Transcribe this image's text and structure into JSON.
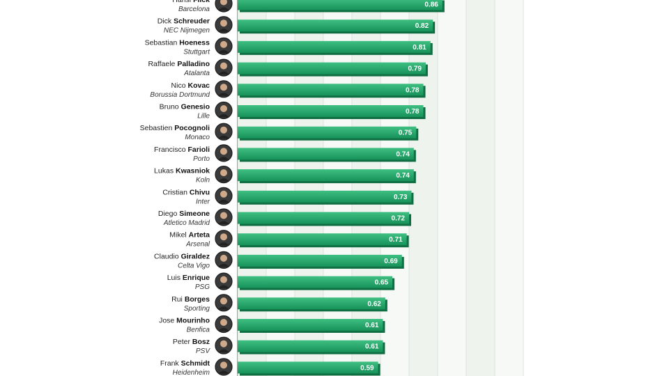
{
  "colors": {
    "bar_top": "#3fbf82",
    "bar_bottom": "#17925a",
    "bar_edge": "#0f6e42",
    "band_a": "#eef3ee",
    "band_b": "#f7f9f7",
    "grid": "#d6ddd6",
    "avatar_bg": "#3a3a3a",
    "avatar_ring": "#1b1b1b"
  },
  "chart_data": {
    "type": "bar",
    "orientation": "horizontal",
    "xlim": [
      0,
      1.2
    ],
    "grid": true,
    "legend": "none",
    "rows": [
      {
        "first": "Hansi",
        "last": "Flick",
        "club": "Barcelona",
        "value": 0.86,
        "label": "0.86"
      },
      {
        "first": "Dick",
        "last": "Schreuder",
        "club": "NEC Nijmegen",
        "value": 0.82,
        "label": "0.82"
      },
      {
        "first": "Sebastian",
        "last": "Hoeness",
        "club": "Stuttgart",
        "value": 0.81,
        "label": "0.81"
      },
      {
        "first": "Raffaele",
        "last": "Palladino",
        "club": "Atalanta",
        "value": 0.79,
        "label": "0.79"
      },
      {
        "first": "Nico",
        "last": "Kovac",
        "club": "Borussia Dortmund",
        "value": 0.78,
        "label": "0.78"
      },
      {
        "first": "Bruno",
        "last": "Genesio",
        "club": "Lille",
        "value": 0.78,
        "label": "0.78"
      },
      {
        "first": "Sebastien",
        "last": "Pocognoli",
        "club": "Monaco",
        "value": 0.75,
        "label": "0.75"
      },
      {
        "first": "Francisco",
        "last": "Farioli",
        "club": "Porto",
        "value": 0.74,
        "label": "0.74"
      },
      {
        "first": "Lukas",
        "last": "Kwasniok",
        "club": "Koln",
        "value": 0.74,
        "label": "0.74"
      },
      {
        "first": "Cristian",
        "last": "Chivu",
        "club": "Inter",
        "value": 0.73,
        "label": "0.73"
      },
      {
        "first": "Diego",
        "last": "Simeone",
        "club": "Atletico Madrid",
        "value": 0.72,
        "label": "0.72"
      },
      {
        "first": "Mikel",
        "last": "Arteta",
        "club": "Arsenal",
        "value": 0.71,
        "label": "0.71"
      },
      {
        "first": "Claudio",
        "last": "Giraldez",
        "club": "Celta Vigo",
        "value": 0.69,
        "label": "0.69"
      },
      {
        "first": "Luis",
        "last": "Enrique",
        "club": "PSG",
        "value": 0.65,
        "label": "0.65"
      },
      {
        "first": "Rui",
        "last": "Borges",
        "club": "Sporting",
        "value": 0.62,
        "label": "0.62"
      },
      {
        "first": "Jose",
        "last": "Mourinho",
        "club": "Benfica",
        "value": 0.61,
        "label": "0.61"
      },
      {
        "first": "Peter",
        "last": "Bosz",
        "club": "PSV",
        "value": 0.61,
        "label": "0.61"
      },
      {
        "first": "Frank",
        "last": "Schmidt",
        "club": "Heidenheim",
        "value": 0.59,
        "label": "0.59"
      }
    ]
  }
}
